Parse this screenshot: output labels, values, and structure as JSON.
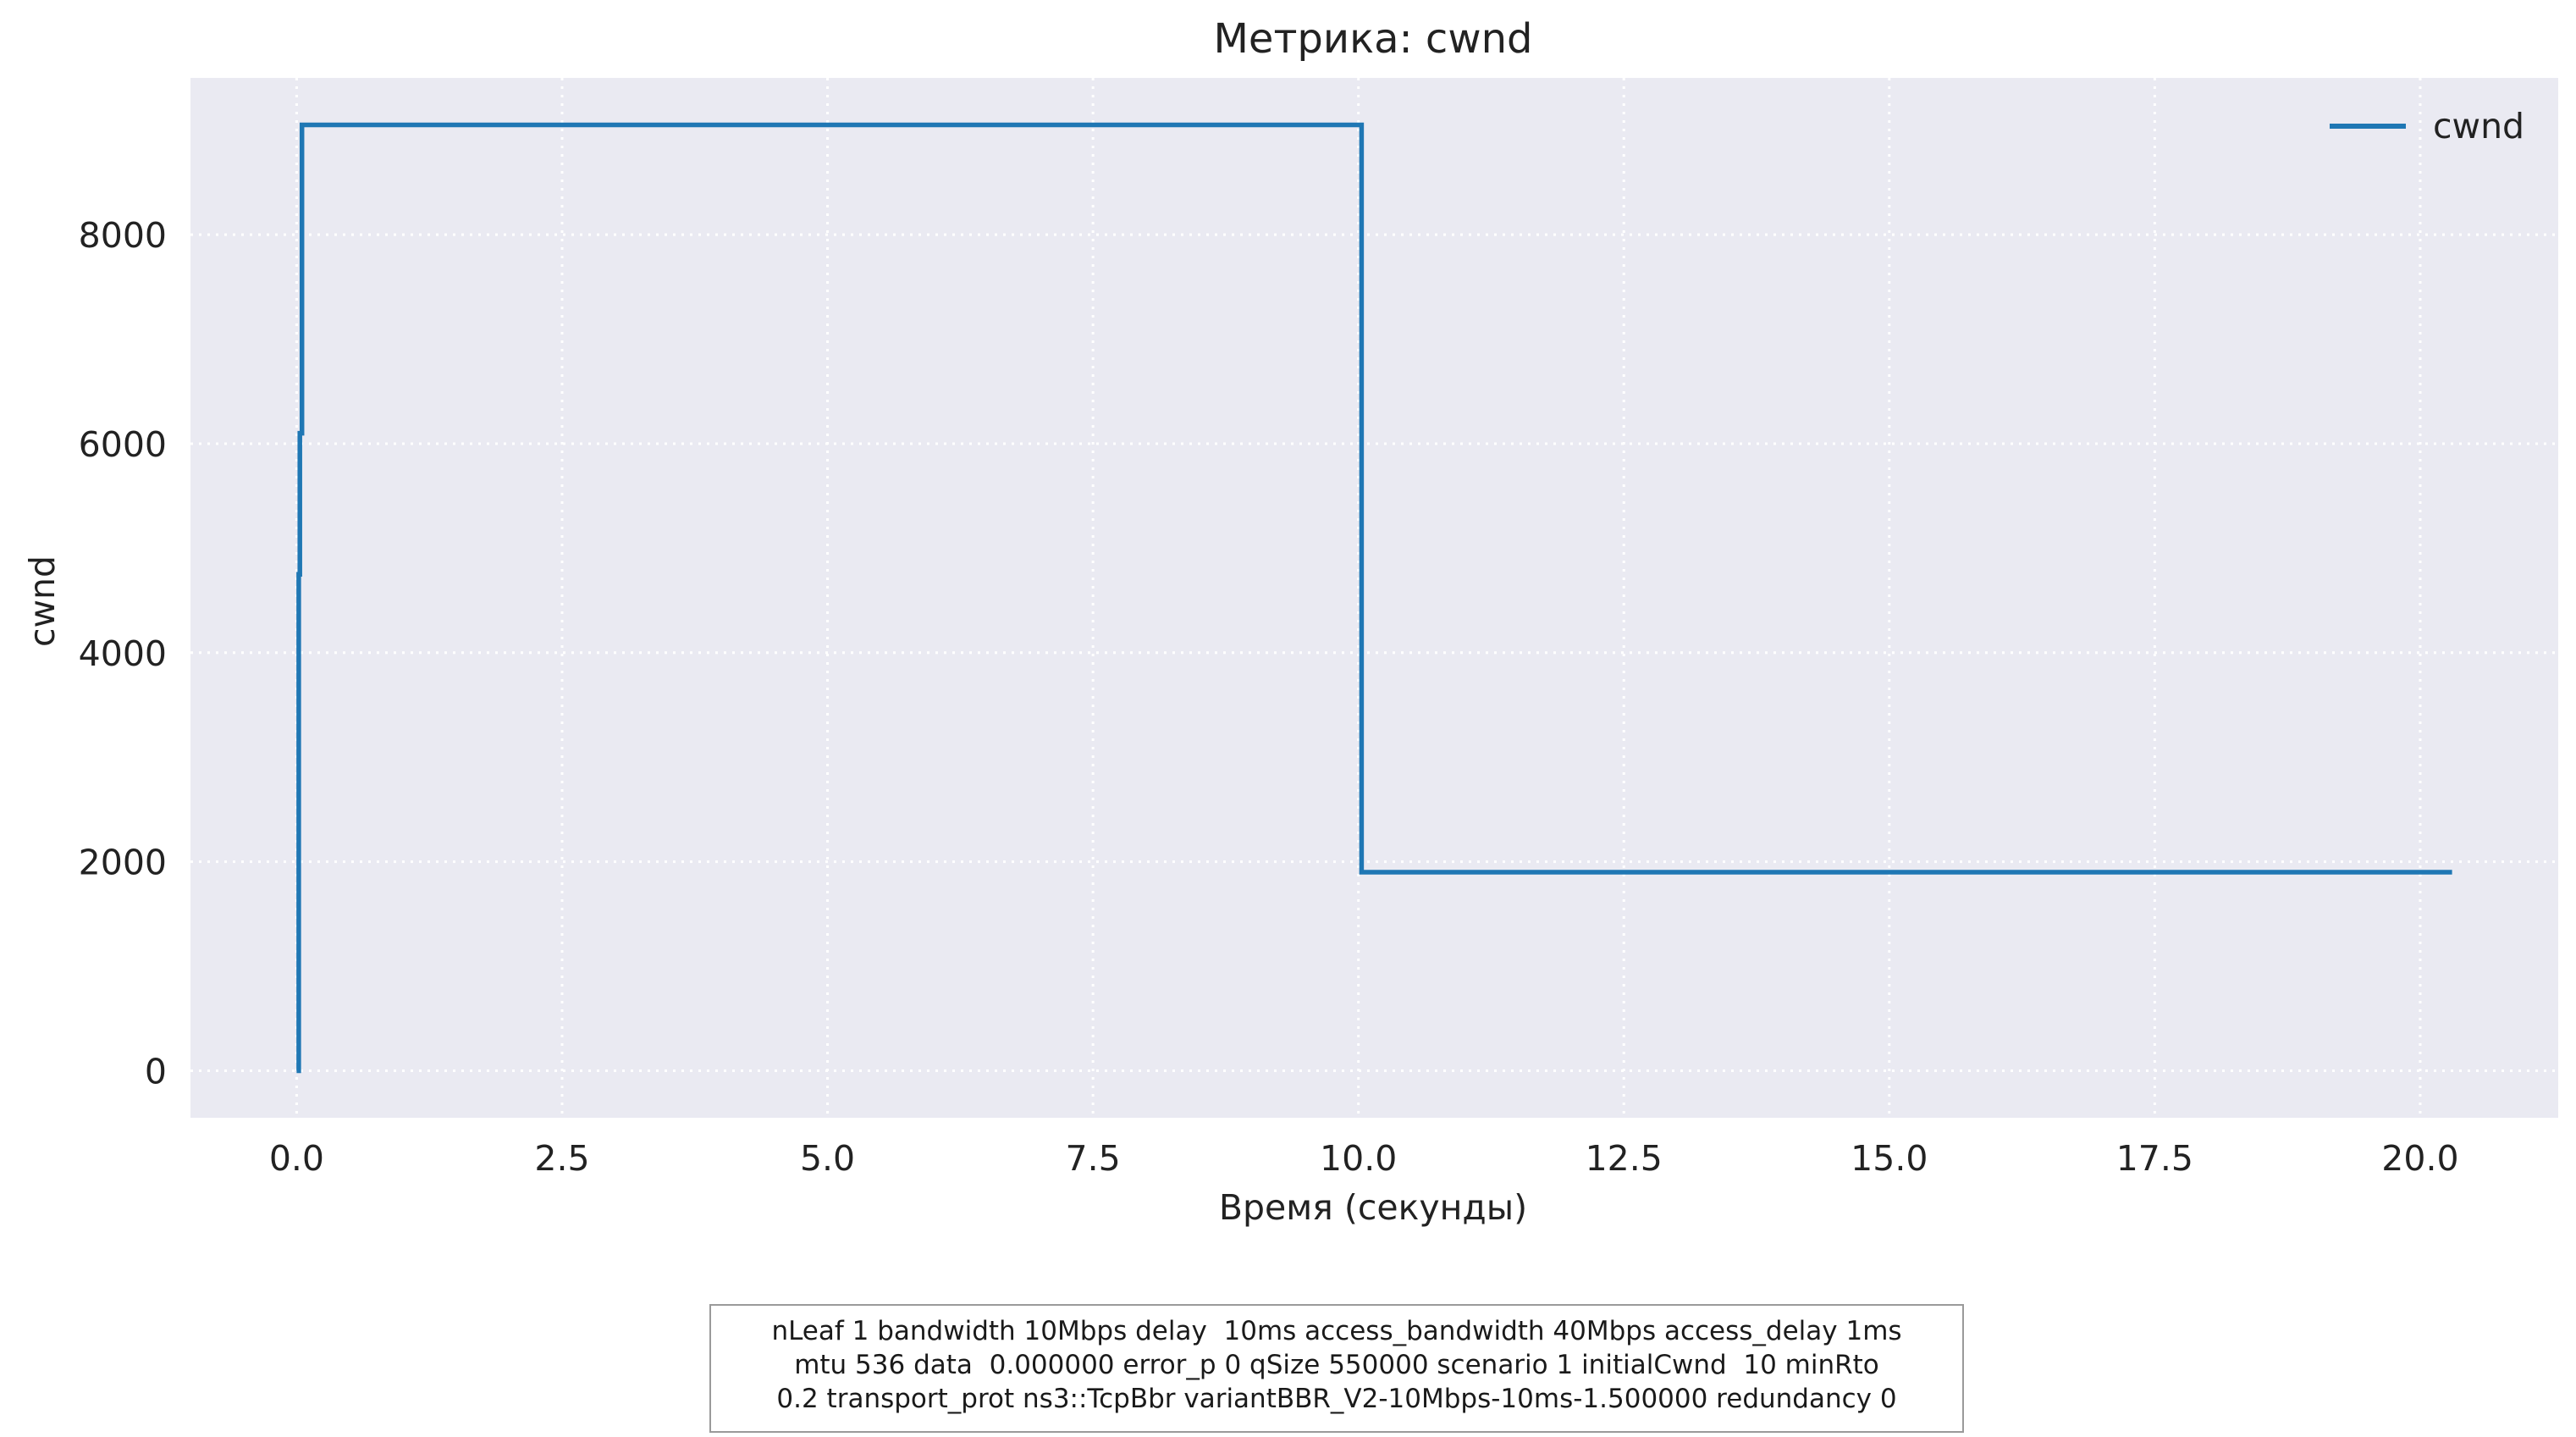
{
  "colors": {
    "plot_background": "#eaeaf2",
    "grid": "#ffffff",
    "series": "#1f77b4",
    "text": "#222222"
  },
  "chart_data": {
    "type": "line",
    "title": "Метрика: cwnd",
    "xlabel": "Время (секунды)",
    "ylabel": "cwnd",
    "xlim": [
      -1.0,
      21.3
    ],
    "ylim": [
      -450,
      9500
    ],
    "x_ticks": [
      0.0,
      2.5,
      5.0,
      7.5,
      10.0,
      12.5,
      15.0,
      17.5,
      20.0
    ],
    "x_tick_labels": [
      "0.0",
      "2.5",
      "5.0",
      "7.5",
      "10.0",
      "12.5",
      "15.0",
      "17.5",
      "20.0"
    ],
    "y_ticks": [
      0,
      2000,
      4000,
      6000,
      8000
    ],
    "y_tick_labels": [
      "0",
      "2000",
      "4000",
      "6000",
      "8000"
    ],
    "grid": true,
    "grid_style": "dotted",
    "legend_position": "top-right",
    "series": [
      {
        "name": "cwnd",
        "x": [
          0.0,
          0.02,
          0.02,
          0.03,
          0.03,
          0.05,
          0.05,
          10.03,
          10.03,
          20.3
        ],
        "y": [
          0,
          0,
          4750,
          4750,
          6100,
          6100,
          9050,
          9050,
          1900,
          1900
        ]
      }
    ]
  },
  "caption": {
    "lines": [
      "nLeaf 1 bandwidth 10Mbps delay  10ms access_bandwidth 40Mbps access_delay 1ms",
      "mtu 536 data  0.000000 error_p 0 qSize 550000 scenario 1 initialCwnd  10 minRto",
      "0.2 transport_prot ns3::TcpBbr variantBBR_V2-10Mbps-10ms-1.500000 redundancy 0"
    ]
  }
}
